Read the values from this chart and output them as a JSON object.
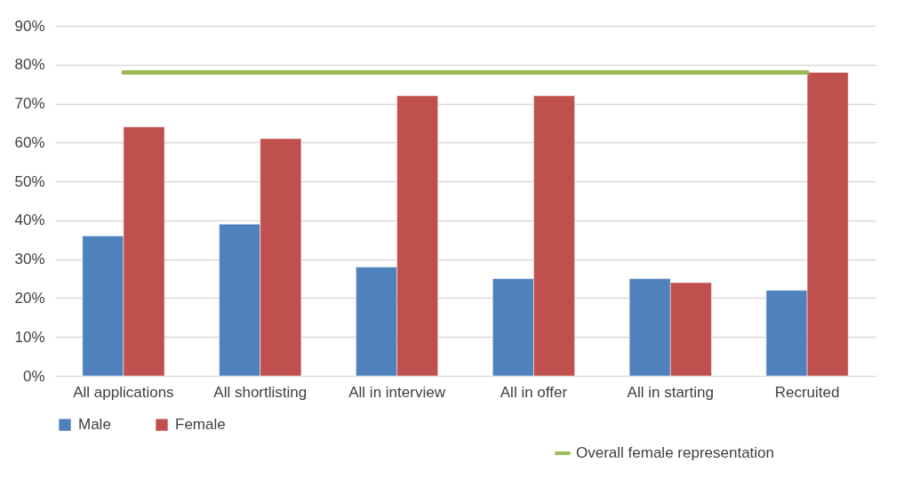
{
  "chart_data": {
    "type": "bar",
    "categories": [
      "All applications",
      "All shortlisting",
      "All in interview",
      "All in offer",
      "All in starting",
      "Recruited"
    ],
    "series": [
      {
        "name": "Male",
        "color": "#4f81bd",
        "values": [
          36,
          39,
          28,
          25,
          25,
          22
        ]
      },
      {
        "name": "Female",
        "color": "#c0504d",
        "values": [
          64,
          61,
          72,
          72,
          24,
          78
        ]
      },
      {
        "name": "Overall female representation",
        "type": "line",
        "color": "#9bbb59",
        "values": [
          78,
          78,
          78,
          78,
          78,
          78
        ]
      }
    ],
    "ylim": [
      0,
      90
    ],
    "yticks": [
      {
        "value": 0,
        "label": "0%"
      },
      {
        "value": 10,
        "label": "10%"
      },
      {
        "value": 20,
        "label": "20%"
      },
      {
        "value": 30,
        "label": "30%"
      },
      {
        "value": 40,
        "label": "40%"
      },
      {
        "value": 50,
        "label": "50%"
      },
      {
        "value": 60,
        "label": "60%"
      },
      {
        "value": 70,
        "label": "70%"
      },
      {
        "value": 80,
        "label": "80%"
      },
      {
        "value": 90,
        "label": "90%"
      }
    ],
    "grid": "y",
    "legend": "bottom",
    "marker": "none",
    "line_style": "solid"
  }
}
